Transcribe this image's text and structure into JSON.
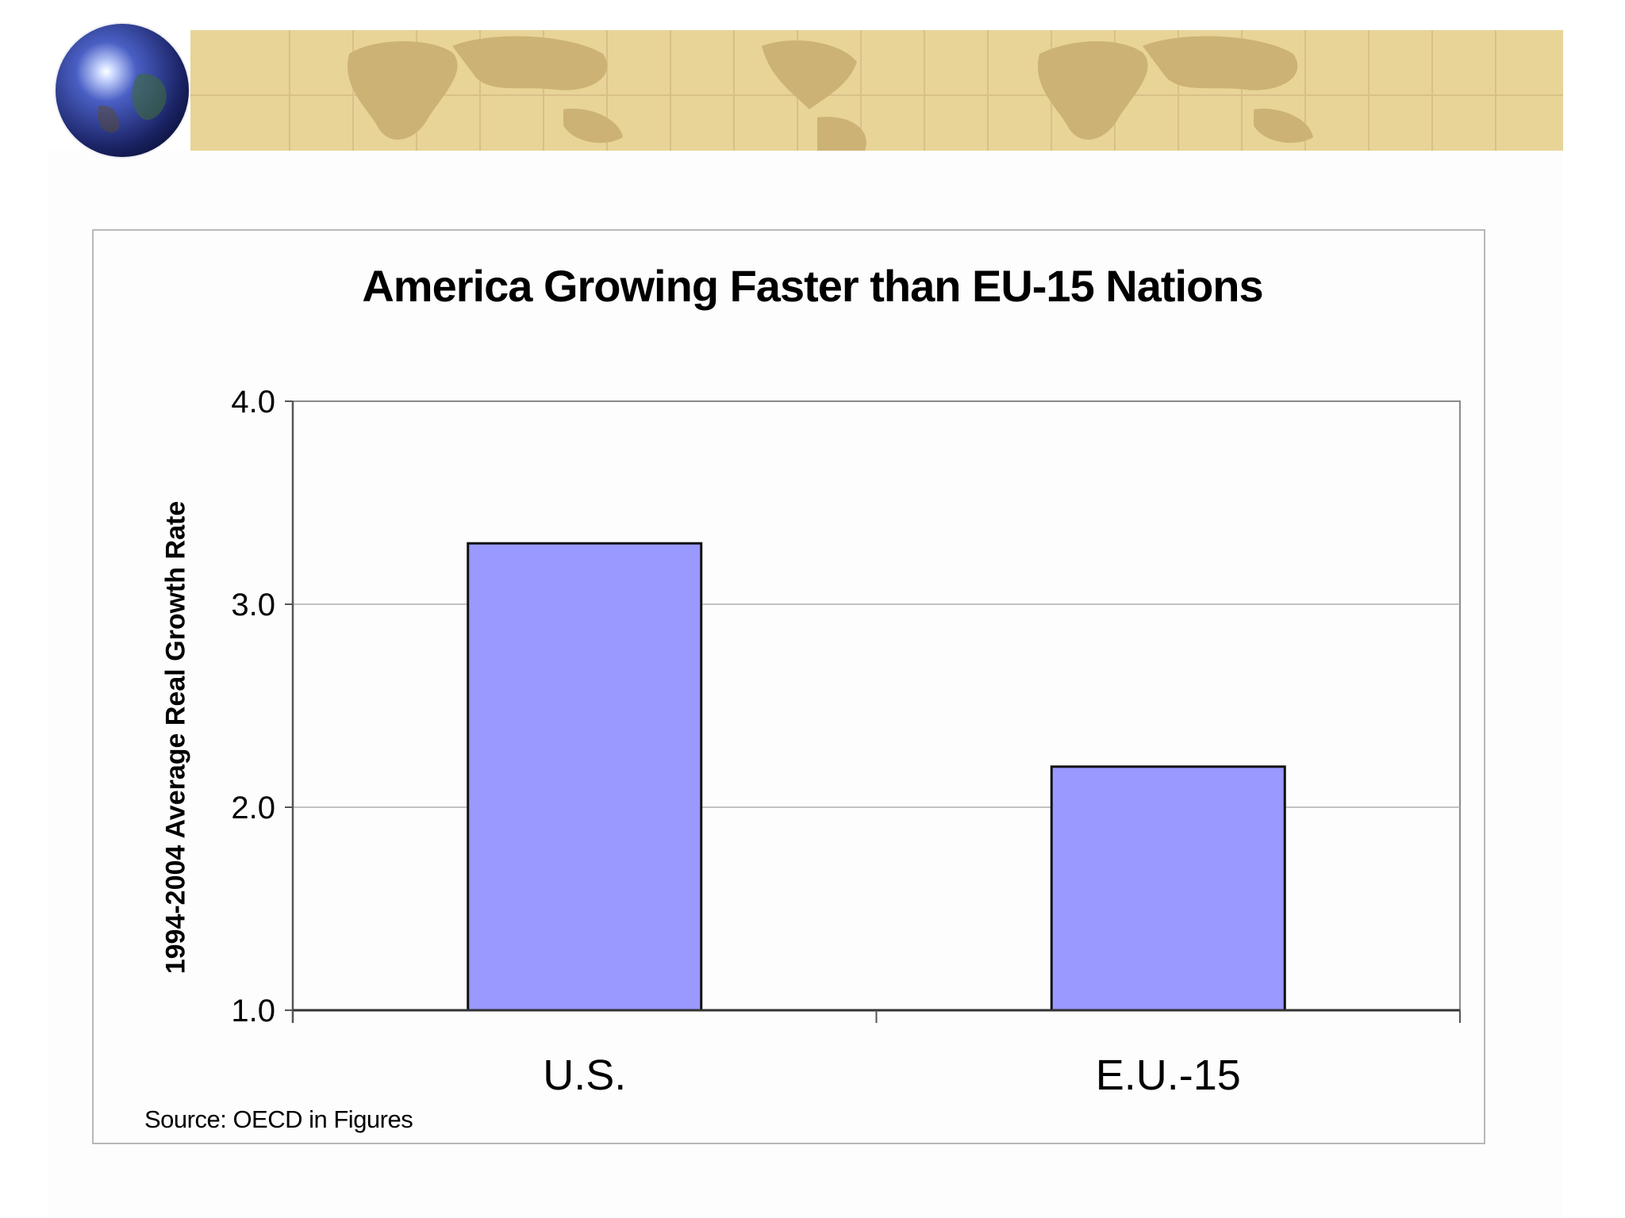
{
  "colors": {
    "banner": "#e8d497",
    "banner_land": "#cdb275",
    "bar_fill": "#9999ff",
    "bar_stroke": "#111111"
  },
  "icons": [
    "globe-icon"
  ],
  "chart_data": {
    "type": "bar",
    "title": "America Growing Faster than EU-15 Nations",
    "xlabel": "",
    "ylabel": "1994-2004 Average Real Growth Rate",
    "categories": [
      "U.S.",
      "E.U.-15"
    ],
    "values": [
      3.3,
      2.2
    ],
    "ylim": [
      1.0,
      4.0
    ],
    "yticks": [
      "1.0",
      "2.0",
      "3.0",
      "4.0"
    ],
    "grid": true,
    "legend": "none",
    "source": "Source: OECD in Figures"
  }
}
